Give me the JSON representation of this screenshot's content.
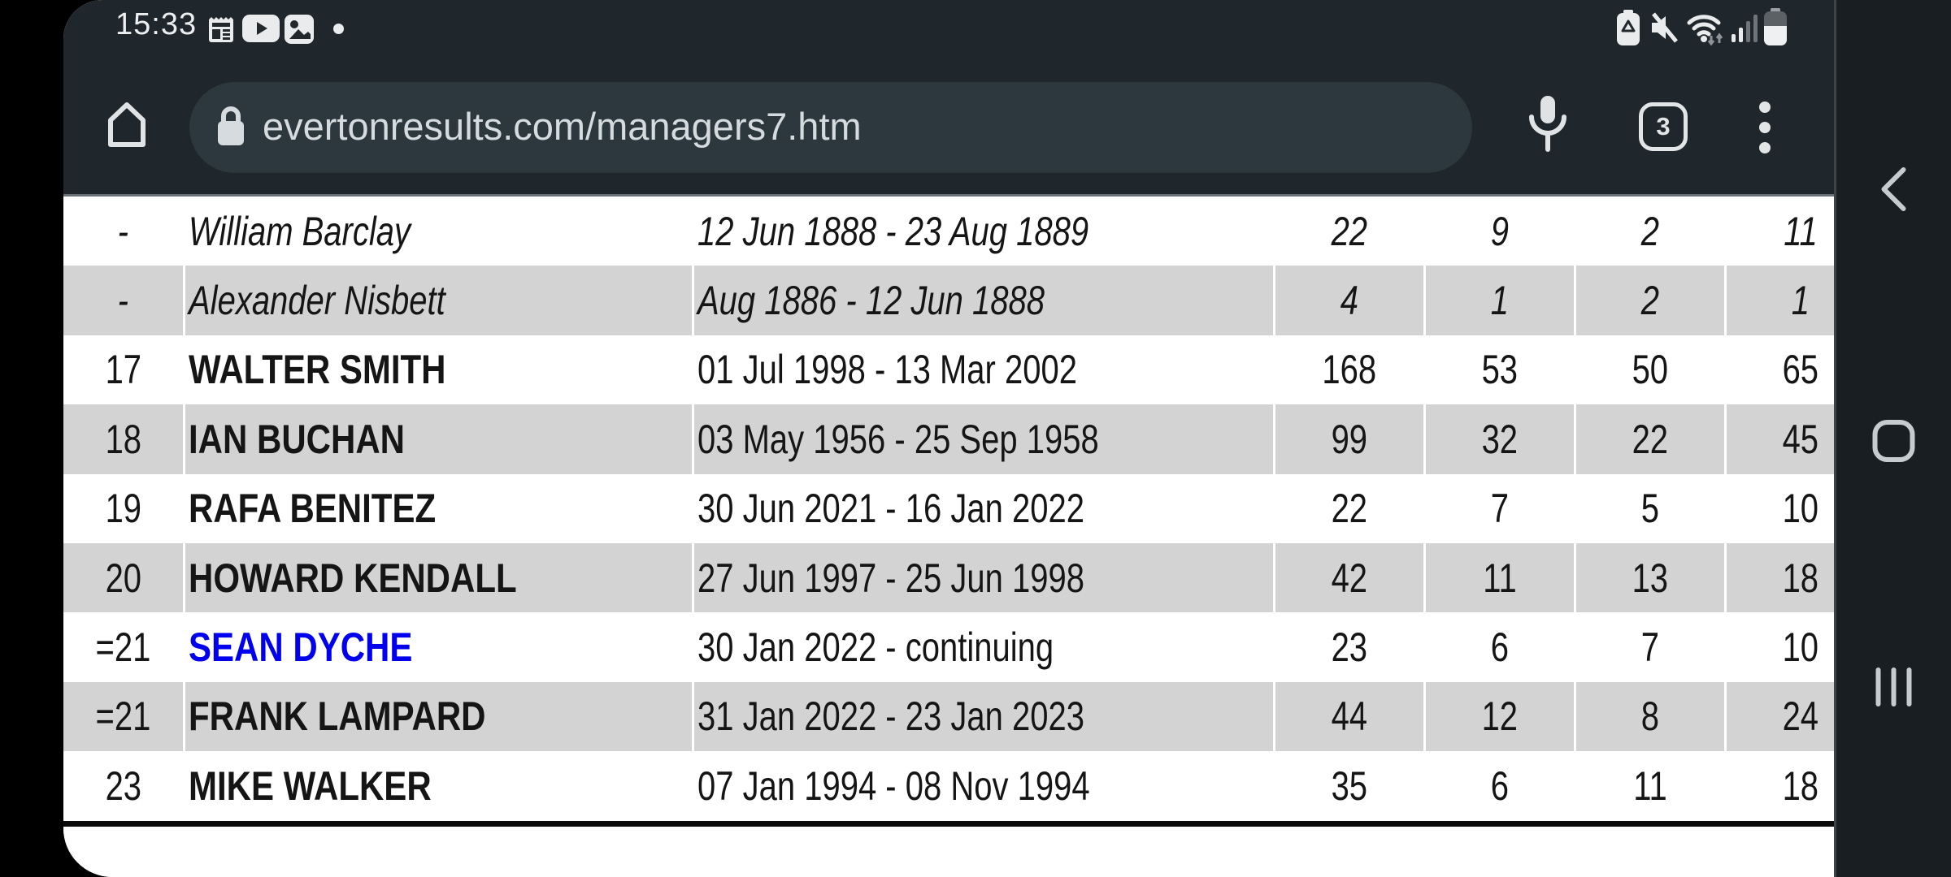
{
  "status_bar": {
    "time": "15:33",
    "notification_icons": [
      "newspaper-icon",
      "youtube-icon",
      "gallery-icon",
      "more-notifications-dot"
    ],
    "system_icons": [
      "battery-saver-icon",
      "sound-muted-icon",
      "wifi-icon",
      "signal-icon",
      "battery-icon"
    ]
  },
  "browser": {
    "url": "evertonresults.com/managers7.htm",
    "tab_count": "3",
    "toolbar_icons": [
      "home-icon",
      "lock-icon",
      "microphone-icon",
      "tab-switcher",
      "overflow-menu-icon"
    ]
  },
  "nav_bar": {
    "buttons": [
      "back",
      "home",
      "recents"
    ]
  },
  "table": {
    "rows": [
      {
        "rank": "-",
        "name": "William Barclay",
        "dates": "12 Jun 1888 - 23 Aug 1889",
        "stats": [
          "22",
          "9",
          "2",
          "11"
        ],
        "style": "historic"
      },
      {
        "rank": "-",
        "name": "Alexander Nisbett",
        "dates": "Aug 1886 - 12 Jun 1888",
        "stats": [
          "4",
          "1",
          "2",
          "1"
        ],
        "style": "historic"
      },
      {
        "rank": "17",
        "name": "WALTER SMITH",
        "dates": "01 Jul 1998 - 13 Mar 2002",
        "stats": [
          "168",
          "53",
          "50",
          "65"
        ],
        "style": "normal"
      },
      {
        "rank": "18",
        "name": "IAN BUCHAN",
        "dates": "03 May 1956 - 25 Sep 1958",
        "stats": [
          "99",
          "32",
          "22",
          "45"
        ],
        "style": "normal"
      },
      {
        "rank": "19",
        "name": "RAFA BENITEZ",
        "dates": "30 Jun 2021 - 16 Jan 2022",
        "stats": [
          "22",
          "7",
          "5",
          "10"
        ],
        "style": "normal"
      },
      {
        "rank": "20",
        "name": "HOWARD KENDALL",
        "dates": "27 Jun 1997 - 25 Jun 1998",
        "stats": [
          "42",
          "11",
          "13",
          "18"
        ],
        "style": "normal"
      },
      {
        "rank": "=21",
        "name": "SEAN DYCHE",
        "dates": "30 Jan 2022 - continuing",
        "stats": [
          "23",
          "6",
          "7",
          "10"
        ],
        "style": "link"
      },
      {
        "rank": "=21",
        "name": "FRANK LAMPARD",
        "dates": "31 Jan 2022 - 23 Jan 2023",
        "stats": [
          "44",
          "12",
          "8",
          "24"
        ],
        "style": "normal"
      },
      {
        "rank": "23",
        "name": "MIKE WALKER",
        "dates": "07 Jan 1994 - 08 Nov 1994",
        "stats": [
          "35",
          "6",
          "11",
          "18"
        ],
        "style": "normal"
      }
    ]
  },
  "colors": {
    "chrome_bg": "#1f272c",
    "url_pill_bg": "#2c383d",
    "chrome_text": "#d5dbde",
    "nav_bar_bg": "#191e22",
    "row_alt_bg": "#d3d3d3",
    "link_blue": "#0000ee",
    "table_text": "#151515"
  }
}
